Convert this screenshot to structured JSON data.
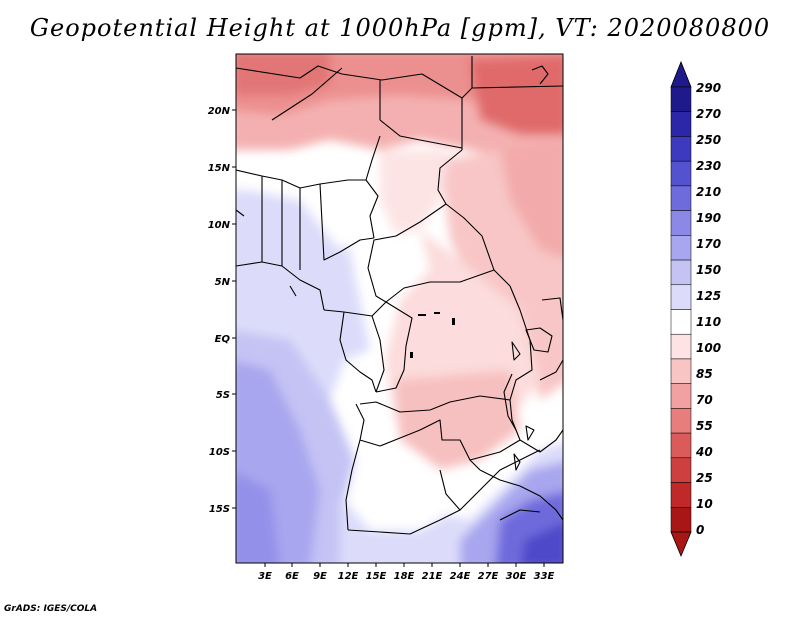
{
  "title": "Geopotential Height at 1000hPa [gpm], VT: 2020080800",
  "credit": "GrADS: IGES/COLA",
  "lat_labels": [
    "20N",
    "15N",
    "10N",
    "5N",
    "EQ",
    "5S",
    "10S",
    "15S"
  ],
  "lon_labels": [
    "3E",
    "6E",
    "9E",
    "12E",
    "15E",
    "18E",
    "21E",
    "24E",
    "27E",
    "30E",
    "33E"
  ],
  "colorbar": {
    "labels": [
      "290",
      "270",
      "250",
      "230",
      "210",
      "190",
      "170",
      "150",
      "125",
      "110",
      "100",
      "85",
      "70",
      "55",
      "40",
      "25",
      "10",
      "0"
    ],
    "colors": [
      "#1e1a8c",
      "#2b27a8",
      "#3d3ac0",
      "#5552cf",
      "#6e6bdc",
      "#8b88e6",
      "#a8a6ee",
      "#c4c3f4",
      "#dcdcfa",
      "#ffffff",
      "#fde3e3",
      "#f9c4c4",
      "#f1a1a1",
      "#e77d7d",
      "#db5b5b",
      "#ce3f3f",
      "#c12828",
      "#a81616"
    ]
  },
  "chart_data": {
    "type": "heatmap",
    "title": "Geopotential Height at 1000hPa [gpm], VT: 2020080800",
    "variable": "Geopotential Height",
    "level": "1000hPa",
    "units": "gpm",
    "valid_time": "2020080800",
    "lon_range": [
      0,
      35
    ],
    "lat_range": [
      -19,
      24
    ],
    "contour_levels": [
      0,
      10,
      25,
      40,
      55,
      70,
      85,
      100,
      110,
      125,
      150,
      170,
      190,
      210,
      230,
      250,
      270,
      290
    ]
  }
}
